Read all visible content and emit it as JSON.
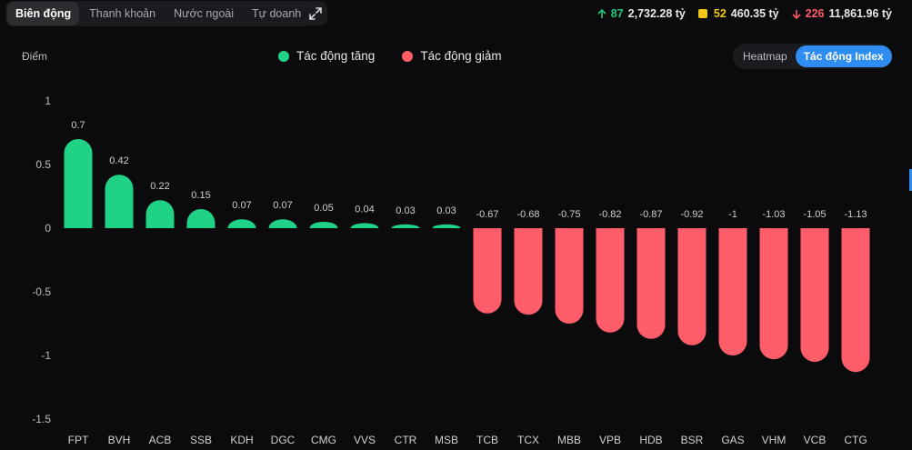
{
  "tabs": [
    {
      "label": "Biên động",
      "active": true
    },
    {
      "label": "Thanh khoản",
      "active": false
    },
    {
      "label": "Nước ngoài",
      "active": false
    },
    {
      "label": "Tự doanh",
      "active": false
    }
  ],
  "stats": {
    "up": {
      "count": "87",
      "value": "2,732.28 tỷ"
    },
    "flat": {
      "count": "52",
      "value": "460.35 tỷ"
    },
    "down": {
      "count": "226",
      "value": "11,861.96 tỷ"
    }
  },
  "legend": {
    "increase": "Tác động tăng",
    "decrease": "Tác động giảm"
  },
  "view_toggle": {
    "heatmap": "Heatmap",
    "index": "Tác động Index"
  },
  "colors": {
    "positive": "#1fd286",
    "negative": "#ff5d6a"
  },
  "chart_data": {
    "type": "bar",
    "ylabel": "Điểm",
    "ylim": [
      -1.5,
      1
    ],
    "yticks": [
      "1",
      "0.5",
      "0",
      "-0.5",
      "-1",
      "-1.5"
    ],
    "ytick_values": [
      1,
      0.5,
      0,
      -0.5,
      -1,
      -1.5
    ],
    "categories": [
      "FPT",
      "BVH",
      "ACB",
      "SSB",
      "KDH",
      "DGC",
      "CMG",
      "VVS",
      "CTR",
      "MSB",
      "TCB",
      "TCX",
      "MBB",
      "VPB",
      "HDB",
      "BSR",
      "GAS",
      "VHM",
      "VCB",
      "CTG"
    ],
    "values": [
      0.7,
      0.42,
      0.22,
      0.15,
      0.07,
      0.07,
      0.05,
      0.04,
      0.03,
      0.03,
      -0.67,
      -0.68,
      -0.75,
      -0.82,
      -0.87,
      -0.92,
      -1,
      -1.03,
      -1.05,
      -1.13
    ],
    "value_labels": [
      "0.7",
      "0.42",
      "0.22",
      "0.15",
      "0.07",
      "0.07",
      "0.05",
      "0.04",
      "0.03",
      "0.03",
      "-0.67",
      "-0.68",
      "-0.75",
      "-0.82",
      "-0.87",
      "-0.92",
      "-1",
      "-1.03",
      "-1.05",
      "-1.13"
    ]
  }
}
